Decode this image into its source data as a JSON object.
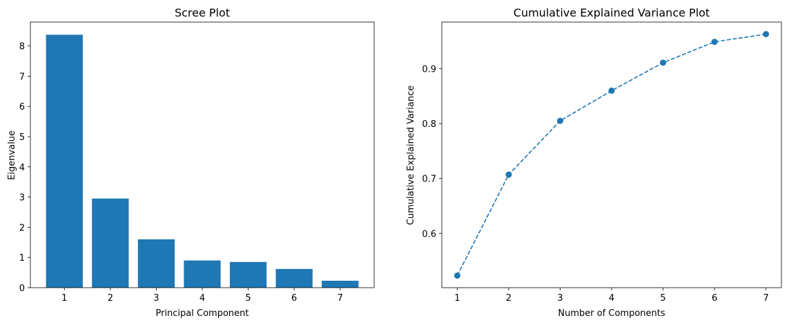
{
  "chart_data": [
    {
      "type": "bar",
      "title": "Scree Plot",
      "xlabel": "Principal Component",
      "ylabel": "Eigenvalue",
      "categories": [
        1,
        2,
        3,
        4,
        5,
        6,
        7
      ],
      "values": [
        8.37,
        2.95,
        1.6,
        0.9,
        0.85,
        0.62,
        0.23
      ],
      "xlim": [
        0.26,
        7.74
      ],
      "ylim": [
        0,
        8.79
      ],
      "xticks": [
        "1",
        "2",
        "3",
        "4",
        "5",
        "6",
        "7"
      ],
      "yticks": [
        "0",
        "1",
        "2",
        "3",
        "4",
        "5",
        "6",
        "7",
        "8"
      ],
      "grid": false,
      "color": "#1f77b4"
    },
    {
      "type": "line",
      "title": "Cumulative Explained Variance Plot",
      "xlabel": "Number of Components",
      "ylabel": "Cumulative Explained Variance",
      "x": [
        1,
        2,
        3,
        4,
        5,
        6,
        7
      ],
      "y": [
        0.523,
        0.707,
        0.805,
        0.86,
        0.911,
        0.949,
        0.963
      ],
      "xlim": [
        0.7,
        7.3
      ],
      "ylim": [
        0.501,
        0.985
      ],
      "xticks": [
        "1",
        "2",
        "3",
        "4",
        "5",
        "6",
        "7"
      ],
      "yticks": [
        "0.6",
        "0.7",
        "0.8",
        "0.9"
      ],
      "line_style": "dashed",
      "marker": "circle",
      "grid": false,
      "color": "#1f77b4"
    }
  ]
}
